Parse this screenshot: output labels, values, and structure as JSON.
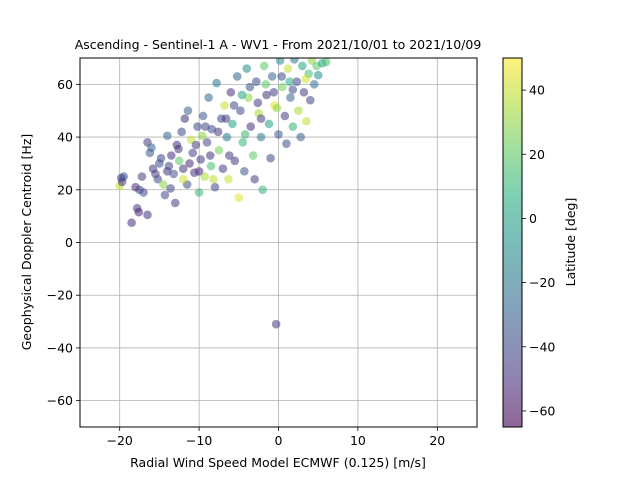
{
  "chart_data": {
    "type": "scatter",
    "title": "Ascending - Sentinel-1 A - WV1 - From 2021/10/01 to 2021/10/09",
    "xlabel": "Radial Wind Speed Model ECMWF (0.125) [m/s]",
    "ylabel": "Geophysical Doppler Centroid [Hz]",
    "xlim": [
      -25,
      25
    ],
    "ylim": [
      -70,
      70
    ],
    "xticks": [
      -20,
      -10,
      0,
      10,
      20
    ],
    "yticks": [
      -60,
      -40,
      -20,
      0,
      20,
      40,
      60
    ],
    "grid": true,
    "colorbar": {
      "label": "Latitude [deg]",
      "range": [
        -65,
        50
      ],
      "ticks": [
        -60,
        -40,
        -20,
        0,
        20,
        40
      ],
      "colormap": "viridis",
      "alpha": 0.55
    },
    "points": [
      [
        -20.0,
        21.5,
        40
      ],
      [
        -19.8,
        24.5,
        -45
      ],
      [
        -19.7,
        23.0,
        -48
      ],
      [
        -19.5,
        25.0,
        -40
      ],
      [
        -18.5,
        7.5,
        -50
      ],
      [
        -18.0,
        21.0,
        -50
      ],
      [
        -17.8,
        13.0,
        -48
      ],
      [
        -17.6,
        11.5,
        -55
      ],
      [
        -17.5,
        20.0,
        -42
      ],
      [
        -17.2,
        25.0,
        -44
      ],
      [
        -17.0,
        19.0,
        -40
      ],
      [
        -16.5,
        10.5,
        -50
      ],
      [
        -16.5,
        38.0,
        -45
      ],
      [
        -16.2,
        34.0,
        -35
      ],
      [
        -16.0,
        36.0,
        -30
      ],
      [
        -15.5,
        26.0,
        -45
      ],
      [
        -15.2,
        24.0,
        -40
      ],
      [
        -15.0,
        30.0,
        -38
      ],
      [
        -14.5,
        22.0,
        30
      ],
      [
        -14.3,
        18.0,
        -40
      ],
      [
        -14.0,
        40.5,
        -30
      ],
      [
        -14.0,
        27.0,
        -48
      ],
      [
        -13.6,
        20.5,
        -42
      ],
      [
        -13.5,
        33.0,
        -50
      ],
      [
        -13.2,
        26.0,
        -36
      ],
      [
        -13.0,
        15.0,
        -45
      ],
      [
        -12.8,
        37.0,
        -50
      ],
      [
        -12.5,
        31.0,
        20
      ],
      [
        -12.2,
        42.0,
        -40
      ],
      [
        -12.0,
        28.0,
        -45
      ],
      [
        -11.8,
        47.0,
        -50
      ],
      [
        -11.5,
        22.0,
        -40
      ],
      [
        -11.4,
        50.0,
        -30
      ],
      [
        -11.0,
        39.0,
        40
      ],
      [
        -10.8,
        34.0,
        -44
      ],
      [
        -10.6,
        26.5,
        -48
      ],
      [
        -10.2,
        44.0,
        -40
      ],
      [
        -10.0,
        19.0,
        10
      ],
      [
        -9.8,
        31.5,
        -46
      ],
      [
        -9.5,
        48.0,
        -35
      ],
      [
        -9.3,
        25.0,
        35
      ],
      [
        -9.0,
        38.0,
        -42
      ],
      [
        -8.8,
        55.0,
        -25
      ],
      [
        -8.5,
        29.0,
        15
      ],
      [
        -8.4,
        43.0,
        -38
      ],
      [
        -8.0,
        21.0,
        -40
      ],
      [
        -7.8,
        60.5,
        -20
      ],
      [
        -7.5,
        35.0,
        25
      ],
      [
        -7.2,
        47.0,
        -42
      ],
      [
        -7.0,
        28.0,
        -44
      ],
      [
        -6.8,
        52.0,
        40
      ],
      [
        -6.5,
        40.0,
        -20
      ],
      [
        -6.3,
        24.0,
        40
      ],
      [
        -6.0,
        57.0,
        -50
      ],
      [
        -5.8,
        45.0,
        0
      ],
      [
        -5.5,
        31.0,
        -46
      ],
      [
        -5.2,
        63.0,
        -30
      ],
      [
        -5.0,
        17.0,
        45
      ],
      [
        -4.8,
        50.0,
        -40
      ],
      [
        -4.5,
        38.0,
        10
      ],
      [
        -4.3,
        27.0,
        -35
      ],
      [
        -4.0,
        66.0,
        -10
      ],
      [
        -3.8,
        55.0,
        30
      ],
      [
        -3.5,
        44.0,
        -50
      ],
      [
        -3.2,
        33.0,
        20
      ],
      [
        -3.0,
        24.0,
        -44
      ],
      [
        -2.8,
        61.0,
        -40
      ],
      [
        -2.5,
        49.0,
        35
      ],
      [
        -2.2,
        40.0,
        -20
      ],
      [
        -2.0,
        20.0,
        10
      ],
      [
        -1.8,
        67.0,
        20
      ],
      [
        -1.5,
        56.0,
        -48
      ],
      [
        -1.2,
        45.0,
        0
      ],
      [
        -1.0,
        32.0,
        -40
      ],
      [
        -0.8,
        63.0,
        -30
      ],
      [
        -0.5,
        52.0,
        45
      ],
      [
        -0.3,
        -31.0,
        -45
      ],
      [
        0.0,
        41.0,
        -35
      ],
      [
        0.2,
        69.0,
        -10
      ],
      [
        0.5,
        59.0,
        25
      ],
      [
        0.8,
        48.0,
        -44
      ],
      [
        1.0,
        37.5,
        -38
      ],
      [
        1.2,
        66.0,
        40
      ],
      [
        1.5,
        55.0,
        -30
      ],
      [
        1.8,
        44.0,
        10
      ],
      [
        2.0,
        69.5,
        -20
      ],
      [
        2.3,
        61.0,
        -42
      ],
      [
        2.5,
        50.0,
        35
      ],
      [
        2.8,
        40.0,
        -30
      ],
      [
        3.0,
        67.0,
        0
      ],
      [
        3.2,
        57.0,
        -45
      ],
      [
        3.5,
        46.0,
        40
      ],
      [
        3.8,
        64.0,
        15
      ],
      [
        4.0,
        54.0,
        -40
      ],
      [
        4.2,
        69.0,
        30
      ],
      [
        4.5,
        60.0,
        -25
      ],
      [
        4.8,
        67.0,
        20
      ],
      [
        5.0,
        63.5,
        -10
      ],
      [
        5.5,
        68.0,
        0
      ],
      [
        6.0,
        68.5,
        15
      ],
      [
        -13.8,
        29.0,
        -42
      ],
      [
        -12.6,
        35.5,
        -48
      ],
      [
        -11.2,
        30.0,
        -52
      ],
      [
        -10.4,
        37.0,
        -46
      ],
      [
        -9.6,
        40.5,
        30
      ],
      [
        -8.6,
        33.0,
        -50
      ],
      [
        -7.6,
        42.0,
        -48
      ],
      [
        -6.6,
        47.0,
        -44
      ],
      [
        -5.6,
        52.0,
        -40
      ],
      [
        -4.6,
        56.0,
        0
      ],
      [
        -3.6,
        59.0,
        -36
      ],
      [
        -2.6,
        53.0,
        -46
      ],
      [
        -1.6,
        60.0,
        20
      ],
      [
        -0.6,
        57.0,
        -44
      ],
      [
        0.4,
        63.0,
        -40
      ],
      [
        1.4,
        61.0,
        5
      ],
      [
        -15.8,
        28.0,
        -46
      ],
      [
        -14.8,
        32.0,
        -40
      ],
      [
        -12.0,
        24.0,
        42
      ],
      [
        -10.0,
        27.0,
        -52
      ],
      [
        -8.2,
        24.0,
        38
      ],
      [
        -6.2,
        33.0,
        -46
      ],
      [
        -4.2,
        41.0,
        12
      ],
      [
        -2.2,
        47.0,
        -46
      ],
      [
        -0.2,
        51.0,
        30
      ],
      [
        1.8,
        58.0,
        -38
      ],
      [
        3.4,
        62.0,
        42
      ],
      [
        -9.2,
        44.0,
        -42
      ]
    ]
  }
}
